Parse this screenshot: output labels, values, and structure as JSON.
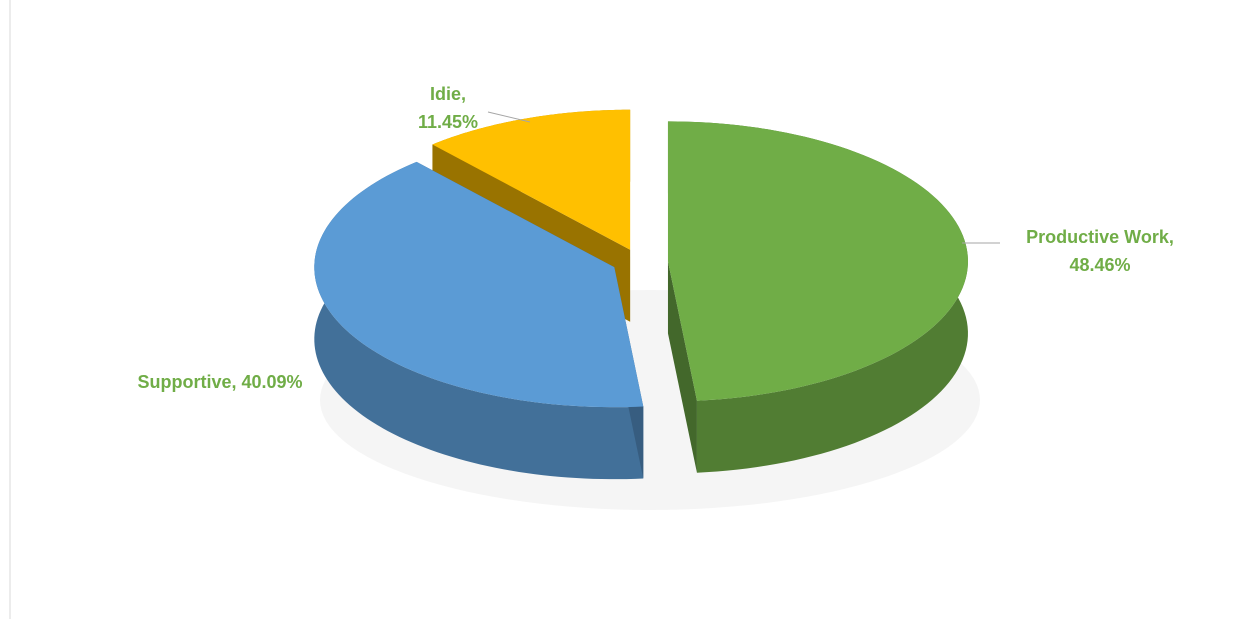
{
  "chart_data": {
    "type": "pie",
    "categories": [
      "Productive Work",
      "Supportive",
      "Idie"
    ],
    "values": [
      48.46,
      40.09,
      11.45
    ],
    "value_labels": [
      "48.46%",
      "40.09%",
      "11.45%"
    ],
    "label_separator": ",",
    "colors": [
      "#70ad47",
      "#5b9bd5",
      "#ffc000"
    ],
    "label_color": "#70ad47",
    "exploded": true
  }
}
